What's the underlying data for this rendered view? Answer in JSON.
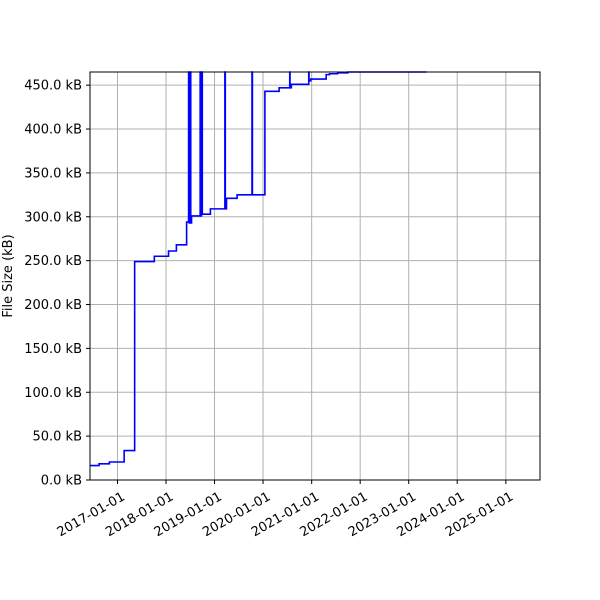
{
  "chart_data": {
    "type": "line",
    "title": "",
    "xlabel": "",
    "ylabel": "File Size (kB)",
    "grid": true,
    "x_is_date": true,
    "xlim": [
      "2016-06-08",
      "2025-09-15"
    ],
    "ylim": [
      0,
      465
    ],
    "x_ticks": [
      "2017-01-01",
      "2018-01-01",
      "2019-01-01",
      "2020-01-01",
      "2021-01-01",
      "2022-01-01",
      "2023-01-01",
      "2024-01-01",
      "2025-01-01"
    ],
    "y_ticks": [
      0,
      50,
      100,
      150,
      200,
      250,
      300,
      350,
      400,
      450
    ],
    "y_tick_labels": [
      "0.0 kB",
      "50.0 kB",
      "100.0 kB",
      "150.0 kB",
      "200.0 kB",
      "250.0 kB",
      "300.0 kB",
      "350.0 kB",
      "400.0 kB",
      "450.0 kB"
    ],
    "line_color": "#0000ff",
    "series": [
      {
        "name": "",
        "step": true,
        "x": [
          "2016-06-08",
          "2016-08-15",
          "2016-11-01",
          "2017-02-20",
          "2017-05-10",
          "2017-10-05",
          "2018-01-20",
          "2018-03-20",
          "2018-06-05",
          "2018-06-20",
          "2018-06-25",
          "2018-07-01",
          "2018-07-06",
          "2018-07-12",
          "2018-09-15",
          "2018-09-18",
          "2018-09-25",
          "2018-10-01",
          "2018-12-01",
          "2019-03-20",
          "2019-03-23",
          "2019-04-01",
          "2019-06-20",
          "2019-10-10",
          "2019-10-13",
          "2020-01-15",
          "2020-05-01",
          "2020-07-20",
          "2020-07-22",
          "2020-08-01",
          "2020-12-10",
          "2020-12-12",
          "2020-12-25",
          "2021-04-20",
          "2021-05-15",
          "2021-07-15",
          "2021-10-01",
          "2023-05-15"
        ],
        "y": [
          16.5,
          18.5,
          20.5,
          33.5,
          249,
          255,
          261,
          268,
          294,
          465,
          293,
          465,
          293,
          301,
          465,
          301,
          465,
          303,
          309,
          465,
          309,
          321,
          325,
          465,
          325,
          443,
          447,
          465,
          447,
          451,
          465,
          455,
          457,
          462,
          463,
          464,
          465,
          465
        ]
      }
    ]
  }
}
